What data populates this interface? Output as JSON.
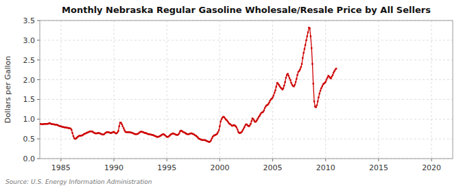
{
  "chart_data": {
    "type": "line",
    "title": "Monthly Nebraska Regular Gasoline Wholesale/Resale Price by All Sellers",
    "y_label": "Dollars per Gallon",
    "annotations": [
      "Source: U.S. Energy Information Administration"
    ],
    "color": "#CC0000",
    "marker": "square",
    "grid": true,
    "xlim": [
      1983.0,
      2022.0
    ],
    "ylim": [
      0.0,
      3.5
    ],
    "xticks": [
      1985,
      1990,
      1995,
      2000,
      2005,
      2010,
      2015,
      2020
    ],
    "yticks": [
      {
        "value": 0.0,
        "label": "0.0"
      },
      0.5,
      {
        "value": 1.0,
        "label": "1.0"
      },
      1.5,
      {
        "value": 2.0,
        "label": "2.0"
      },
      2.5,
      {
        "value": 3.0,
        "label": "3.0"
      },
      3.5
    ],
    "x": [
      1983.08,
      1983.17,
      1983.25,
      1983.33,
      1983.42,
      1983.5,
      1983.58,
      1983.67,
      1983.75,
      1983.83,
      1983.92,
      1984.0,
      1984.08,
      1984.17,
      1984.25,
      1984.33,
      1984.42,
      1984.5,
      1984.58,
      1984.67,
      1984.75,
      1984.83,
      1984.92,
      1985.0,
      1985.08,
      1985.17,
      1985.25,
      1985.33,
      1985.42,
      1985.5,
      1985.58,
      1985.67,
      1985.75,
      1985.83,
      1985.92,
      1986.0,
      1986.08,
      1986.17,
      1986.25,
      1986.33,
      1986.42,
      1986.5,
      1986.58,
      1986.67,
      1986.75,
      1986.83,
      1986.92,
      1987.0,
      1987.08,
      1987.17,
      1987.25,
      1987.33,
      1987.42,
      1987.5,
      1987.58,
      1987.67,
      1987.75,
      1987.83,
      1987.92,
      1988.0,
      1988.08,
      1988.17,
      1988.25,
      1988.33,
      1988.42,
      1988.5,
      1988.58,
      1988.67,
      1988.75,
      1988.83,
      1988.92,
      1989.0,
      1989.08,
      1989.17,
      1989.25,
      1989.33,
      1989.42,
      1989.5,
      1989.58,
      1989.67,
      1989.75,
      1989.83,
      1989.92,
      1990.0,
      1990.08,
      1990.17,
      1990.25,
      1990.33,
      1990.42,
      1990.5,
      1990.58,
      1990.67,
      1990.75,
      1990.83,
      1990.92,
      1991.0,
      1991.08,
      1991.17,
      1991.25,
      1991.33,
      1991.42,
      1991.5,
      1991.58,
      1991.67,
      1991.75,
      1991.83,
      1991.92,
      1992.0,
      1992.08,
      1992.17,
      1992.25,
      1992.33,
      1992.42,
      1992.5,
      1992.58,
      1992.67,
      1992.75,
      1992.83,
      1992.92,
      1993.0,
      1993.08,
      1993.17,
      1993.25,
      1993.33,
      1993.42,
      1993.5,
      1993.58,
      1993.67,
      1993.75,
      1993.83,
      1993.92,
      1994.0,
      1994.08,
      1994.17,
      1994.25,
      1994.33,
      1994.42,
      1994.5,
      1994.58,
      1994.67,
      1994.75,
      1994.83,
      1994.92,
      1995.0,
      1995.08,
      1995.17,
      1995.25,
      1995.33,
      1995.42,
      1995.5,
      1995.58,
      1995.67,
      1995.75,
      1995.83,
      1995.92,
      1996.0,
      1996.08,
      1996.17,
      1996.25,
      1996.33,
      1996.42,
      1996.5,
      1996.58,
      1996.67,
      1996.75,
      1996.83,
      1996.92,
      1997.0,
      1997.08,
      1997.17,
      1997.25,
      1997.33,
      1997.42,
      1997.5,
      1997.58,
      1997.67,
      1997.75,
      1997.83,
      1997.92,
      1998.0,
      1998.08,
      1998.17,
      1998.25,
      1998.33,
      1998.42,
      1998.5,
      1998.58,
      1998.67,
      1998.75,
      1998.83,
      1998.92,
      1999.0,
      1999.08,
      1999.17,
      1999.25,
      1999.33,
      1999.42,
      1999.5,
      1999.58,
      1999.67,
      1999.75,
      1999.83,
      1999.92,
      2000.0,
      2000.08,
      2000.17,
      2000.25,
      2000.33,
      2000.42,
      2000.5,
      2000.58,
      2000.67,
      2000.75,
      2000.83,
      2000.92,
      2001.0,
      2001.08,
      2001.17,
      2001.25,
      2001.33,
      2001.42,
      2001.5,
      2001.58,
      2001.67,
      2001.75,
      2001.83,
      2001.92,
      2002.0,
      2002.08,
      2002.17,
      2002.25,
      2002.33,
      2002.42,
      2002.5,
      2002.58,
      2002.67,
      2002.75,
      2002.83,
      2002.92,
      2003.0,
      2003.08,
      2003.17,
      2003.25,
      2003.33,
      2003.42,
      2003.5,
      2003.58,
      2003.67,
      2003.75,
      2003.83,
      2003.92,
      2004.0,
      2004.08,
      2004.17,
      2004.25,
      2004.33,
      2004.42,
      2004.5,
      2004.58,
      2004.67,
      2004.75,
      2004.83,
      2004.92,
      2005.0,
      2005.08,
      2005.17,
      2005.25,
      2005.33,
      2005.42,
      2005.5,
      2005.58,
      2005.67,
      2005.75,
      2005.83,
      2005.92,
      2006.0,
      2006.08,
      2006.17,
      2006.25,
      2006.33,
      2006.42,
      2006.5,
      2006.58,
      2006.67,
      2006.75,
      2006.83,
      2006.92,
      2007.0,
      2007.08,
      2007.17,
      2007.25,
      2007.33,
      2007.42,
      2007.5,
      2007.58,
      2007.67,
      2007.75,
      2007.83,
      2007.92,
      2008.0,
      2008.08,
      2008.17,
      2008.25,
      2008.33,
      2008.42,
      2008.5,
      2008.58,
      2008.67,
      2008.75,
      2008.83,
      2008.92,
      2009.0,
      2009.08,
      2009.17,
      2009.25,
      2009.33,
      2009.42,
      2009.5,
      2009.58,
      2009.67,
      2009.75,
      2009.83,
      2009.92,
      2010.0,
      2010.08,
      2010.17,
      2010.25,
      2010.33,
      2010.42,
      2010.5,
      2010.58,
      2010.67,
      2010.75,
      2010.83,
      2010.92,
      2011.0
    ],
    "values": [
      0.88,
      0.87,
      0.87,
      0.87,
      0.88,
      0.88,
      0.88,
      0.88,
      0.88,
      0.89,
      0.9,
      0.89,
      0.88,
      0.87,
      0.87,
      0.87,
      0.86,
      0.86,
      0.86,
      0.85,
      0.84,
      0.83,
      0.82,
      0.82,
      0.81,
      0.8,
      0.8,
      0.79,
      0.79,
      0.79,
      0.78,
      0.78,
      0.77,
      0.77,
      0.76,
      0.73,
      0.65,
      0.57,
      0.52,
      0.5,
      0.51,
      0.53,
      0.55,
      0.57,
      0.58,
      0.58,
      0.58,
      0.59,
      0.6,
      0.62,
      0.63,
      0.64,
      0.65,
      0.66,
      0.67,
      0.68,
      0.69,
      0.69,
      0.69,
      0.68,
      0.66,
      0.65,
      0.64,
      0.64,
      0.64,
      0.65,
      0.65,
      0.64,
      0.63,
      0.62,
      0.61,
      0.61,
      0.62,
      0.64,
      0.66,
      0.67,
      0.67,
      0.67,
      0.66,
      0.65,
      0.65,
      0.66,
      0.67,
      0.68,
      0.66,
      0.64,
      0.64,
      0.66,
      0.7,
      0.82,
      0.91,
      0.91,
      0.87,
      0.82,
      0.77,
      0.72,
      0.68,
      0.67,
      0.67,
      0.67,
      0.67,
      0.67,
      0.66,
      0.66,
      0.65,
      0.64,
      0.63,
      0.62,
      0.62,
      0.62,
      0.63,
      0.64,
      0.66,
      0.68,
      0.68,
      0.68,
      0.67,
      0.66,
      0.65,
      0.65,
      0.64,
      0.63,
      0.62,
      0.62,
      0.61,
      0.61,
      0.6,
      0.6,
      0.59,
      0.58,
      0.57,
      0.56,
      0.55,
      0.55,
      0.56,
      0.57,
      0.58,
      0.6,
      0.61,
      0.62,
      0.61,
      0.59,
      0.57,
      0.55,
      0.55,
      0.56,
      0.58,
      0.6,
      0.62,
      0.63,
      0.64,
      0.63,
      0.62,
      0.61,
      0.6,
      0.6,
      0.61,
      0.64,
      0.69,
      0.71,
      0.7,
      0.68,
      0.67,
      0.66,
      0.65,
      0.63,
      0.62,
      0.62,
      0.62,
      0.63,
      0.64,
      0.64,
      0.63,
      0.62,
      0.61,
      0.59,
      0.58,
      0.56,
      0.54,
      0.51,
      0.5,
      0.49,
      0.48,
      0.47,
      0.47,
      0.47,
      0.47,
      0.46,
      0.45,
      0.44,
      0.43,
      0.42,
      0.43,
      0.46,
      0.51,
      0.55,
      0.58,
      0.59,
      0.6,
      0.61,
      0.63,
      0.67,
      0.72,
      0.82,
      0.94,
      1.0,
      1.04,
      1.06,
      1.05,
      1.02,
      0.99,
      0.97,
      0.94,
      0.91,
      0.88,
      0.87,
      0.85,
      0.83,
      0.84,
      0.85,
      0.84,
      0.82,
      0.79,
      0.74,
      0.68,
      0.65,
      0.65,
      0.66,
      0.68,
      0.72,
      0.76,
      0.8,
      0.85,
      0.87,
      0.86,
      0.83,
      0.82,
      0.84,
      0.88,
      0.95,
      1.02,
      1.0,
      0.96,
      0.93,
      0.94,
      0.97,
      1.01,
      1.05,
      1.08,
      1.12,
      1.16,
      1.17,
      1.18,
      1.22,
      1.28,
      1.32,
      1.35,
      1.36,
      1.38,
      1.42,
      1.47,
      1.5,
      1.52,
      1.55,
      1.6,
      1.67,
      1.73,
      1.82,
      1.92,
      1.9,
      1.87,
      1.83,
      1.8,
      1.78,
      1.75,
      1.78,
      1.85,
      1.94,
      2.05,
      2.12,
      2.15,
      2.1,
      2.04,
      1.99,
      1.92,
      1.87,
      1.84,
      1.83,
      1.87,
      1.94,
      2.02,
      2.12,
      2.2,
      2.22,
      2.26,
      2.32,
      2.4,
      2.55,
      2.68,
      2.78,
      2.88,
      3.0,
      3.1,
      3.2,
      3.32,
      3.3,
      3.1,
      2.8,
      2.4,
      1.9,
      1.45,
      1.32,
      1.3,
      1.35,
      1.45,
      1.55,
      1.65,
      1.72,
      1.78,
      1.83,
      1.88,
      1.9,
      1.92,
      1.95,
      2.0,
      2.05,
      2.1,
      2.08,
      2.05,
      2.03,
      2.08,
      2.12,
      2.18,
      2.22,
      2.26,
      2.28
    ]
  }
}
